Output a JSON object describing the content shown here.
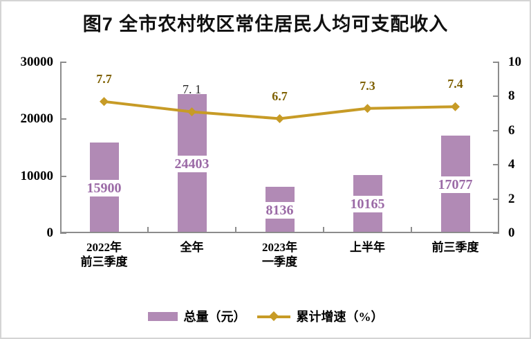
{
  "title": "图7 全市农村牧区常住居民人均可支配收入",
  "colors": {
    "bar_fill": "#b18ab5",
    "bar_value_text": "#9b6aa6",
    "line": "#c79b26",
    "growth_label": "#7e6000",
    "growth_label_alt": "#262626",
    "axis": "#8c8c8c",
    "text": "#000000",
    "frame_border": "#d4d4d4",
    "background": "#ffffff"
  },
  "chart_data": {
    "type": "bar",
    "combo_with": "line",
    "title": "图7 全市农村牧区常住居民人均可支配收入",
    "categories": [
      "2022年前三季度",
      "全年",
      "2023年一季度",
      "上半年",
      "前三季度"
    ],
    "category_lines": [
      [
        "2022年",
        "前三季度"
      ],
      [
        "全年"
      ],
      [
        "2023年",
        "一季度"
      ],
      [
        "上半年"
      ],
      [
        "前三季度"
      ]
    ],
    "series": [
      {
        "name": "总量（元）",
        "chart_type": "bar",
        "axis": "left",
        "color": "#b18ab5",
        "label_color": "#9b6aa6",
        "values": [
          15900,
          24403,
          8136,
          10165,
          17077
        ],
        "labels": [
          "15900",
          "24403",
          "8136",
          "10165",
          "17077"
        ]
      },
      {
        "name": "累计增速（%）",
        "chart_type": "line",
        "axis": "right",
        "color": "#c79b26",
        "values": [
          7.7,
          7.1,
          6.7,
          7.3,
          7.4
        ],
        "points": [
          {
            "label": "7.7",
            "color": "#7e6000",
            "bold": true
          },
          {
            "label": "7. 1",
            "color": "#262626",
            "bold": false
          },
          {
            "label": "6.7",
            "color": "#7e6000",
            "bold": true
          },
          {
            "label": "7.3",
            "color": "#7e6000",
            "bold": true
          },
          {
            "label": "7.4",
            "color": "#7e6000",
            "bold": true
          }
        ]
      }
    ],
    "left_axis": {
      "min": 0,
      "max": 30000,
      "ticks": [
        0,
        10000,
        20000,
        30000
      ]
    },
    "right_axis": {
      "min": 0,
      "max": 10,
      "ticks": [
        0,
        2,
        4,
        6,
        8,
        10
      ]
    },
    "legend": {
      "position": "bottom",
      "items": [
        "总量（元）",
        "累计增速（%）"
      ]
    },
    "grid": false
  }
}
